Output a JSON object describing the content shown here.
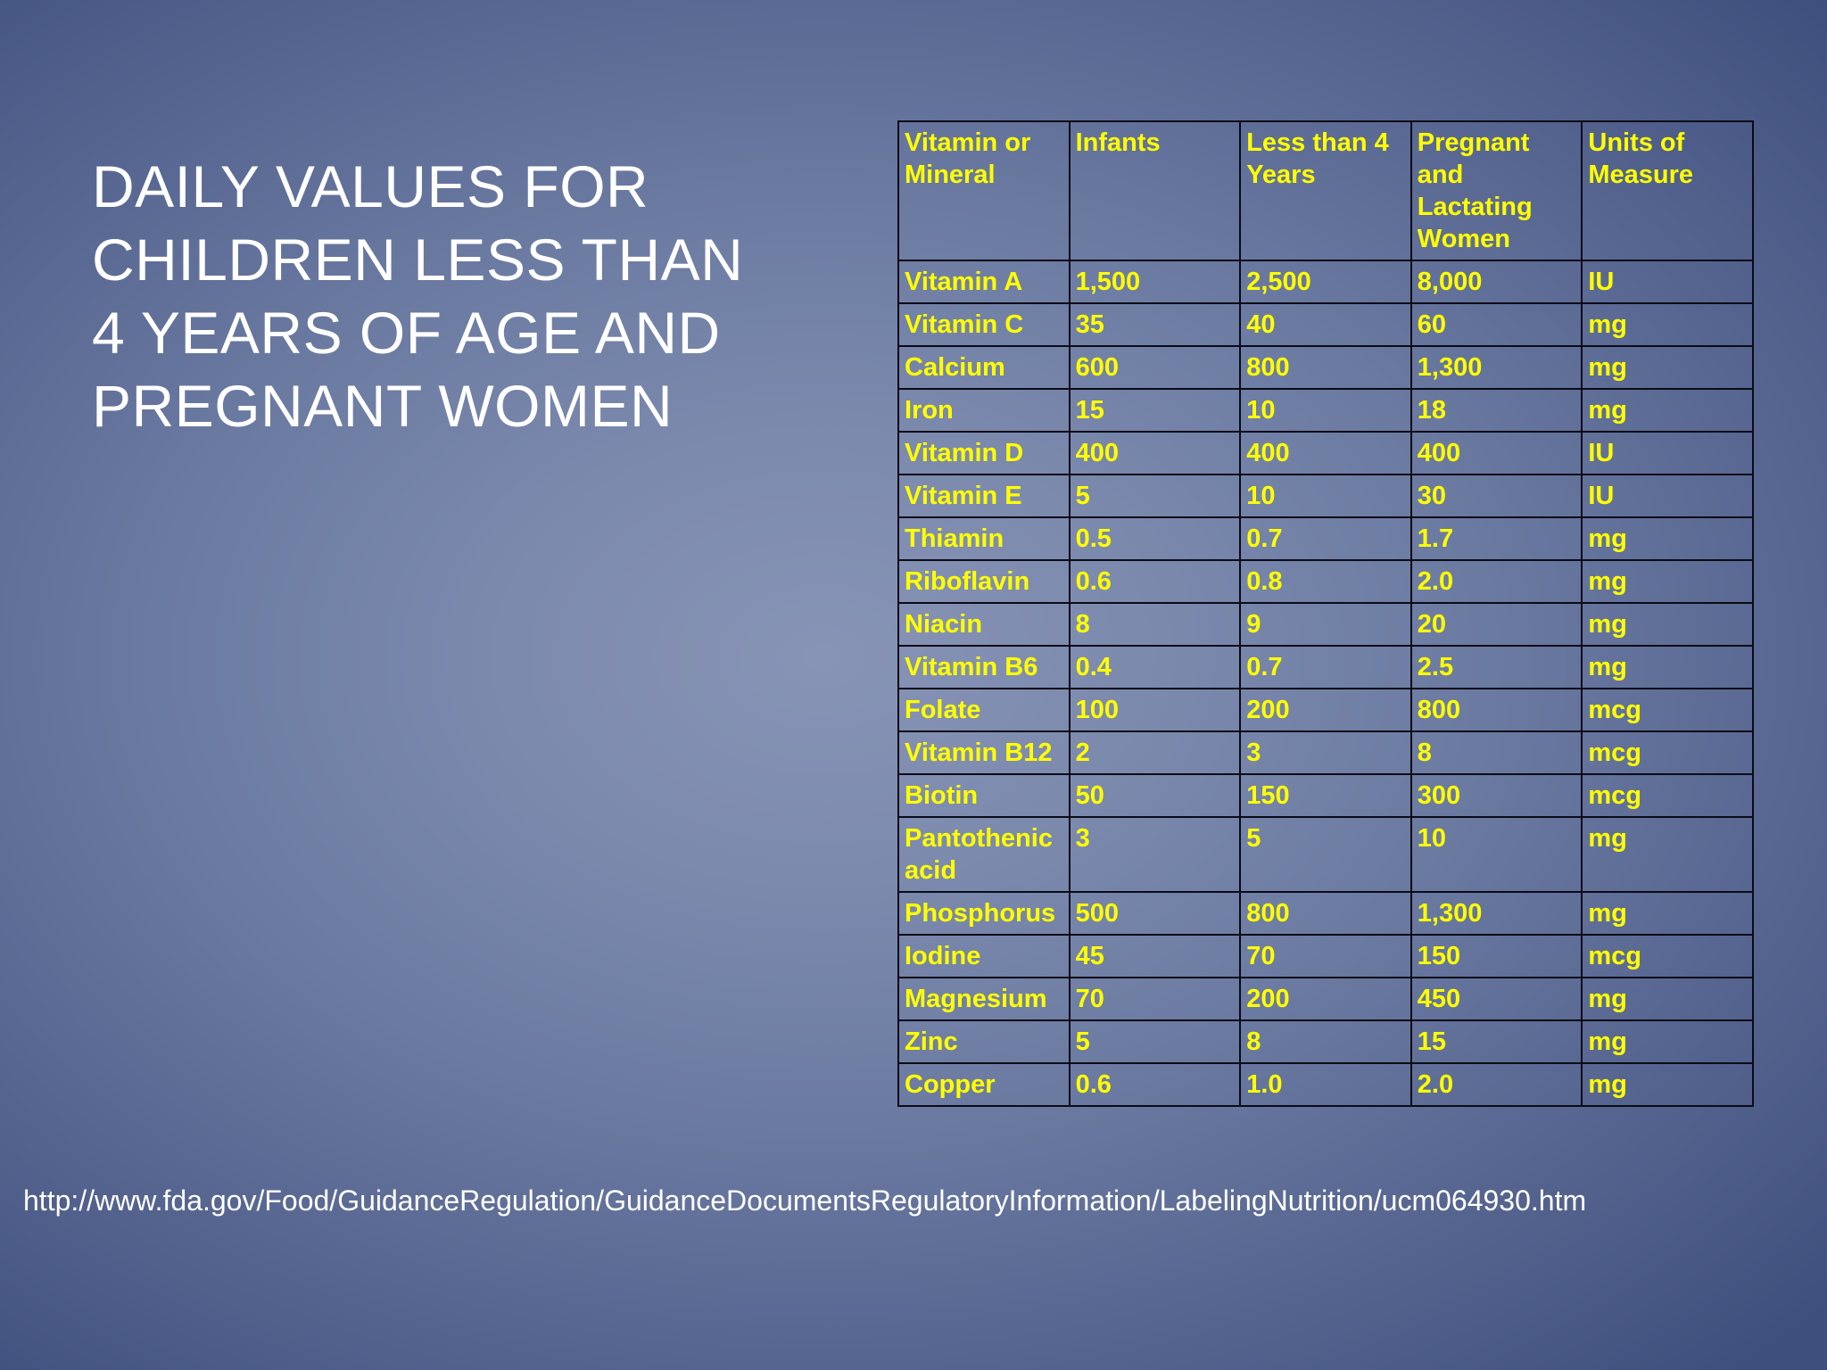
{
  "slide": {
    "title": "DAILY VALUES FOR CHILDREN LESS THAN 4 YEARS OF AGE AND PREGNANT WOMEN",
    "source_url": "http://www.fda.gov/Food/GuidanceRegulation/GuidanceDocumentsRegulatoryInformation/LabelingNutrition/ucm064930.htm"
  },
  "colors": {
    "title_text": "#ffffff",
    "table_text": "#ffff00",
    "table_border": "#0b0b16",
    "background_center": "#8794b6",
    "background_edge": "#3f4f7d"
  },
  "table": {
    "headers": [
      "Vitamin or Mineral",
      "Infants",
      "Less than 4 Years",
      "Pregnant and Lactating Women",
      "Units of Measure"
    ],
    "rows": [
      [
        "Vitamin A",
        "1,500",
        "2,500",
        "8,000",
        "IU"
      ],
      [
        "Vitamin C",
        "35",
        "40",
        "60",
        "mg"
      ],
      [
        "Calcium",
        "600",
        "800",
        "1,300",
        "mg"
      ],
      [
        "Iron",
        "15",
        "10",
        "18",
        "mg"
      ],
      [
        "Vitamin D",
        "400",
        "400",
        "400",
        "IU"
      ],
      [
        "Vitamin E",
        "5",
        "10",
        "30",
        "IU"
      ],
      [
        "Thiamin",
        "0.5",
        "0.7",
        "1.7",
        "mg"
      ],
      [
        "Riboflavin",
        "0.6",
        "0.8",
        "2.0",
        "mg"
      ],
      [
        "Niacin",
        "8",
        "9",
        "20",
        "mg"
      ],
      [
        "Vitamin B6",
        "0.4",
        "0.7",
        "2.5",
        "mg"
      ],
      [
        "Folate",
        "100",
        "200",
        "800",
        "mcg"
      ],
      [
        "Vitamin B12",
        "2",
        "3",
        "8",
        "mcg"
      ],
      [
        "Biotin",
        "50",
        "150",
        "300",
        "mcg"
      ],
      [
        "Pantothenic acid",
        "3",
        "5",
        "10",
        "mg"
      ],
      [
        "Phosphorus",
        "500",
        "800",
        "1,300",
        "mg"
      ],
      [
        "Iodine",
        "45",
        "70",
        "150",
        "mcg"
      ],
      [
        "Magnesium",
        "70",
        "200",
        "450",
        "mg"
      ],
      [
        "Zinc",
        "5",
        "8",
        "15",
        "mg"
      ],
      [
        "Copper",
        "0.6",
        "1.0",
        "2.0",
        "mg"
      ]
    ]
  }
}
